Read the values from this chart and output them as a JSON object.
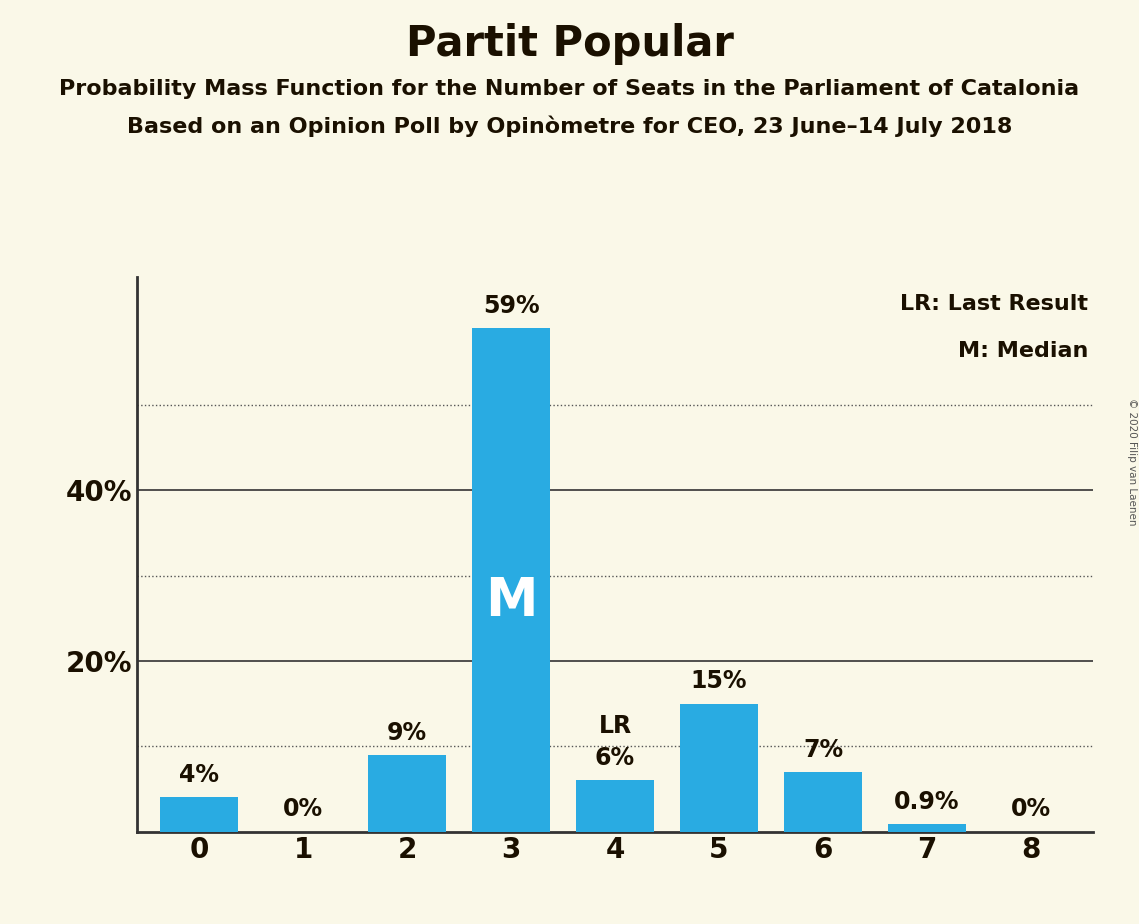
{
  "title": "Partit Popular",
  "subtitle1": "Probability Mass Function for the Number of Seats in the Parliament of Catalonia",
  "subtitle2": "Based on an Opinion Poll by Opinòmetre for CEO, 23 June–14 July 2018",
  "categories": [
    0,
    1,
    2,
    3,
    4,
    5,
    6,
    7,
    8
  ],
  "values": [
    4,
    0,
    9,
    59,
    6,
    15,
    7,
    0.9,
    0
  ],
  "bar_color": "#29ABE2",
  "background_color": "#FAF8E8",
  "bar_labels": [
    "4%",
    "0%",
    "9%",
    "59%",
    "6%",
    "15%",
    "7%",
    "0.9%",
    "0%"
  ],
  "median_bar": 3,
  "lr_bar": 4,
  "median_label": "M",
  "lr_label": "LR",
  "legend_lr": "LR: Last Result",
  "legend_m": "M: Median",
  "solid_yticks": [
    20,
    40
  ],
  "dotted_yticks": [
    10,
    30,
    50
  ],
  "ytick_labels_pos": [
    20,
    40
  ],
  "ytick_labels_vals": [
    "20%",
    "40%"
  ],
  "ylim": [
    0,
    65
  ],
  "copyright": "© 2020 Filip van Laenen",
  "title_fontsize": 30,
  "subtitle_fontsize": 16,
  "axis_fontsize": 20,
  "label_fontsize": 17,
  "legend_fontsize": 16,
  "bar_label_color": "#1a1000"
}
